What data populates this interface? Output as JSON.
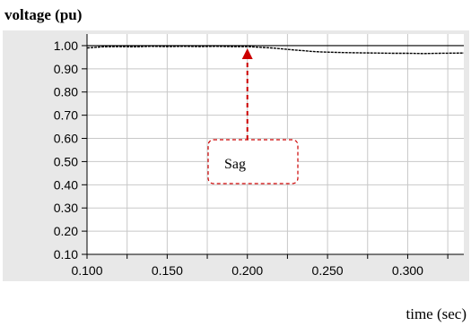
{
  "chart_data": {
    "type": "line",
    "ylabel": "voltage (pu)",
    "xlabel": "time (sec)",
    "xlim": [
      0.1,
      0.335
    ],
    "ylim": [
      0.1,
      1.05
    ],
    "xticks": [
      0.1,
      0.15,
      0.2,
      0.25,
      0.3
    ],
    "xtick_labels": [
      "0.100",
      "0.150",
      "0.200",
      "0.250",
      "0.300"
    ],
    "yticks": [
      1.0,
      0.9,
      0.8,
      0.7,
      0.6,
      0.5,
      0.4,
      0.3,
      0.2,
      0.1
    ],
    "ytick_labels": [
      "1.00",
      "0.90",
      "0.80",
      "0.70",
      "0.60",
      "0.50",
      "0.40",
      "0.30",
      "0.20",
      "0.10"
    ],
    "grid": true,
    "reference_line": {
      "y": 1.0
    },
    "series": [
      {
        "x": [
          0.1,
          0.11,
          0.12,
          0.13,
          0.14,
          0.15,
          0.16,
          0.17,
          0.18,
          0.19,
          0.2,
          0.205,
          0.21,
          0.215,
          0.22,
          0.225,
          0.23,
          0.235,
          0.24,
          0.245,
          0.25,
          0.26,
          0.27,
          0.28,
          0.29,
          0.3,
          0.31,
          0.32,
          0.335
        ],
        "values": [
          0.99,
          0.995,
          0.996,
          0.995,
          0.997,
          0.996,
          0.997,
          0.996,
          0.997,
          0.996,
          0.996,
          0.994,
          0.992,
          0.99,
          0.987,
          0.984,
          0.981,
          0.978,
          0.975,
          0.973,
          0.972,
          0.97,
          0.969,
          0.968,
          0.967,
          0.967,
          0.966,
          0.967,
          0.968
        ],
        "color": "#000000"
      }
    ],
    "annotation": {
      "text": "Sag",
      "x": 0.2,
      "y": 0.996,
      "arrow_color": "#cc0000"
    }
  }
}
